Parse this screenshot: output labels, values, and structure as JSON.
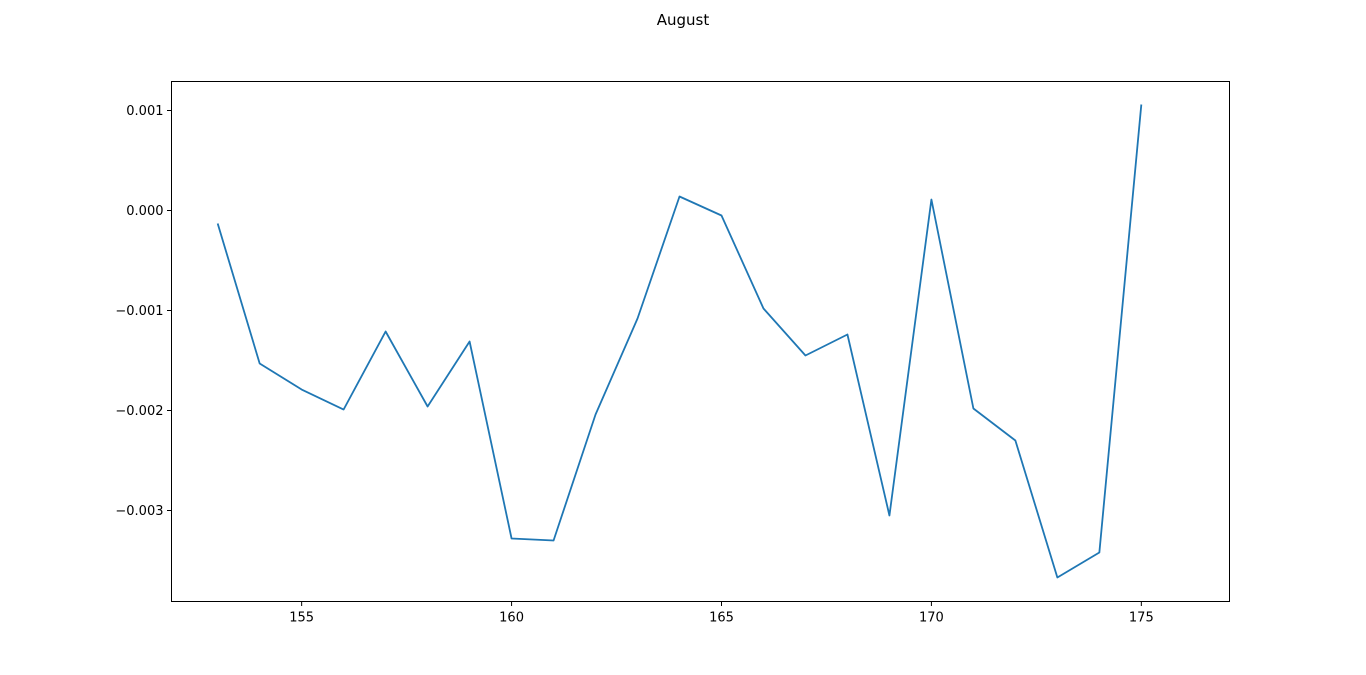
{
  "chart_data": {
    "type": "line",
    "title": "August",
    "xlabel": "",
    "ylabel": "",
    "xlim": [
      151.9,
      177.1
    ],
    "ylim": [
      -0.00391,
      0.00129
    ],
    "x_ticks": [
      155,
      160,
      165,
      170,
      175
    ],
    "x_tick_labels": [
      "155",
      "160",
      "165",
      "170",
      "175"
    ],
    "y_ticks": [
      0.001,
      0.0,
      -0.001,
      -0.002,
      -0.003
    ],
    "y_tick_labels": [
      "0.001",
      "0.000",
      "−0.001",
      "−0.002",
      "−0.003"
    ],
    "grid": false,
    "series": [
      {
        "color": "#1f77b4",
        "x": [
          153,
          154,
          155,
          156,
          157,
          158,
          159,
          160,
          161,
          162,
          163,
          164,
          165,
          166,
          167,
          168,
          169,
          170,
          171,
          172,
          173,
          174,
          175
        ],
        "y": [
          -0.00013,
          -0.00153,
          -0.00179,
          -0.00199,
          -0.00121,
          -0.00196,
          -0.00131,
          -0.00328,
          -0.0033,
          -0.00204,
          -0.00108,
          0.00014,
          -5e-05,
          -0.00098,
          -0.00145,
          -0.00124,
          -0.00305,
          0.00011,
          -0.00198,
          -0.0023,
          -0.00367,
          -0.00342,
          0.00106
        ]
      }
    ]
  }
}
